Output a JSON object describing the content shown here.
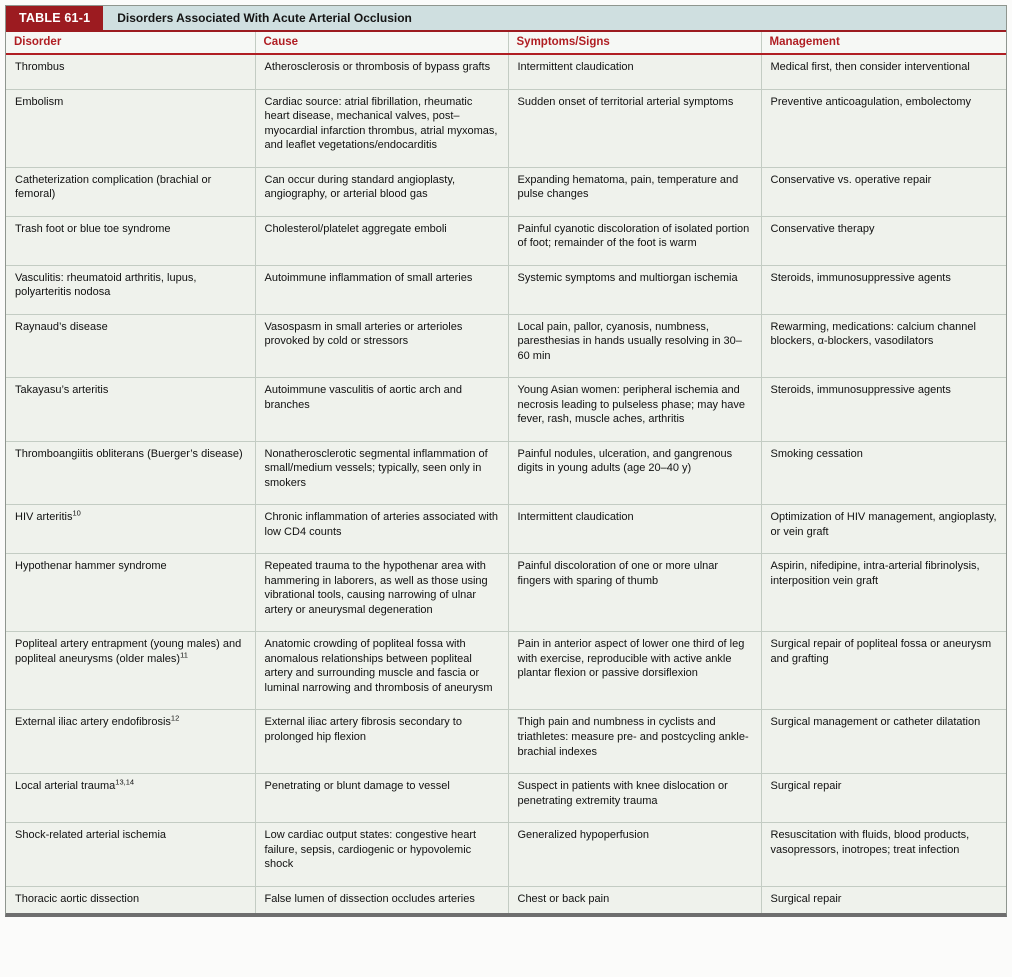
{
  "appearance": {
    "label_bg": "#9c1b20",
    "title_bar_bg": "#cfdfe0",
    "column_header_text": "#b01e23",
    "cell_bg": "#eff2ec",
    "header_rule": "#9c1b20"
  },
  "table": {
    "label": "TABLE 61-1",
    "title": "Disorders Associated With Acute Arterial Occlusion",
    "columns": [
      "Disorder",
      "Cause",
      "Symptoms/Signs",
      "Management"
    ],
    "rows": [
      {
        "disorder": "Thrombus",
        "cause": "Atherosclerosis or thrombosis of bypass grafts",
        "symptoms": "Intermittent claudication",
        "management": "Medical first, then consider interventional"
      },
      {
        "disorder": "Embolism",
        "cause": "Cardiac source: atrial fibrillation, rheumatic heart disease, mechanical valves, post–myocardial infarction thrombus, atrial myxomas, and leaflet vegetations/endocarditis",
        "symptoms": "Sudden onset of territorial arterial symptoms",
        "management": "Preventive anticoagulation, embolectomy"
      },
      {
        "disorder": "Catheterization complication (brachial or femoral)",
        "cause": "Can occur during standard angioplasty, angiography, or arterial blood gas",
        "symptoms": "Expanding hematoma, pain, temperature and pulse changes",
        "management": "Conservative vs. operative repair"
      },
      {
        "disorder": "Trash foot or blue toe syndrome",
        "cause": "Cholesterol/platelet aggregate emboli",
        "symptoms": "Painful cyanotic discoloration of isolated portion of foot; remainder of the foot is warm",
        "management": "Conservative therapy"
      },
      {
        "disorder": "Vasculitis: rheumatoid arthritis, lupus, polyarteritis nodosa",
        "cause": "Autoimmune inflammation of small arteries",
        "symptoms": "Systemic symptoms and multiorgan ischemia",
        "management": "Steroids, immunosuppressive agents"
      },
      {
        "disorder": "Raynaud’s disease",
        "cause": "Vasospasm in small arteries or arterioles provoked by cold or stressors",
        "symptoms": "Local pain, pallor, cyanosis, numbness, paresthesias in hands usually resolving in 30–60 min",
        "management": "Rewarming, medications: calcium channel blockers, α-blockers, vasodilators"
      },
      {
        "disorder": "Takayasu’s arteritis",
        "cause": "Autoimmune vasculitis of aortic arch and branches",
        "symptoms": "Young Asian women: peripheral ischemia and necrosis leading to pulseless phase; may have fever, rash, muscle aches, arthritis",
        "management": "Steroids, immunosuppressive agents"
      },
      {
        "disorder": "Thromboangiitis obliterans (Buerger’s disease)",
        "cause": "Nonatherosclerotic segmental inflammation of small/medium vessels; typically, seen only in smokers",
        "symptoms": "Painful nodules, ulceration, and gangrenous digits in young adults (age 20–40 y)",
        "management": "Smoking cessation"
      },
      {
        "disorder": "HIV arteritis",
        "disorder_sup": "10",
        "cause": "Chronic inflammation of arteries associated with low CD4 counts",
        "symptoms": "Intermittent claudication",
        "management": "Optimization of HIV management, angioplasty, or vein graft"
      },
      {
        "disorder": "Hypothenar hammer syndrome",
        "cause": "Repeated trauma to the hypothenar area with hammering in laborers, as well as those using vibrational tools, causing narrowing of ulnar artery or aneurysmal degeneration",
        "symptoms": "Painful discoloration of one or more ulnar fingers with sparing of thumb",
        "management": "Aspirin, nifedipine, intra-arterial fibrinolysis, interposition vein graft"
      },
      {
        "disorder": "Popliteal artery entrapment (young males) and popliteal aneurysms (older males)",
        "disorder_sup": "11",
        "cause": "Anatomic crowding of popliteal fossa with anomalous relationships between popliteal artery and surrounding muscle and fascia or luminal narrowing and thrombosis of aneurysm",
        "symptoms": "Pain in anterior aspect of lower one third of leg with exercise, reproducible with active ankle plantar flexion or passive dorsiflexion",
        "management": "Surgical repair of popliteal fossa or aneurysm and grafting"
      },
      {
        "disorder": "External iliac artery endofibrosis",
        "disorder_sup": "12",
        "cause": "External iliac artery fibrosis secondary to prolonged hip flexion",
        "symptoms": "Thigh pain and numbness in cyclists and triathletes: measure pre- and postcycling ankle-brachial indexes",
        "management": "Surgical management or catheter dilatation"
      },
      {
        "disorder": "Local arterial trauma",
        "disorder_sup": "13,14",
        "cause": "Penetrating or blunt damage to vessel",
        "symptoms": "Suspect in patients with knee dislocation or penetrating extremity trauma",
        "management": "Surgical repair"
      },
      {
        "disorder": "Shock-related arterial ischemia",
        "cause": "Low cardiac output states: congestive heart failure, sepsis, cardiogenic or hypovolemic shock",
        "symptoms": "Generalized hypoperfusion",
        "management": "Resuscitation with fluids, blood products, vasopressors, inotropes; treat infection"
      },
      {
        "disorder": "Thoracic aortic dissection",
        "cause": "False lumen of dissection occludes arteries",
        "symptoms": "Chest or back pain",
        "management": "Surgical repair"
      }
    ]
  }
}
